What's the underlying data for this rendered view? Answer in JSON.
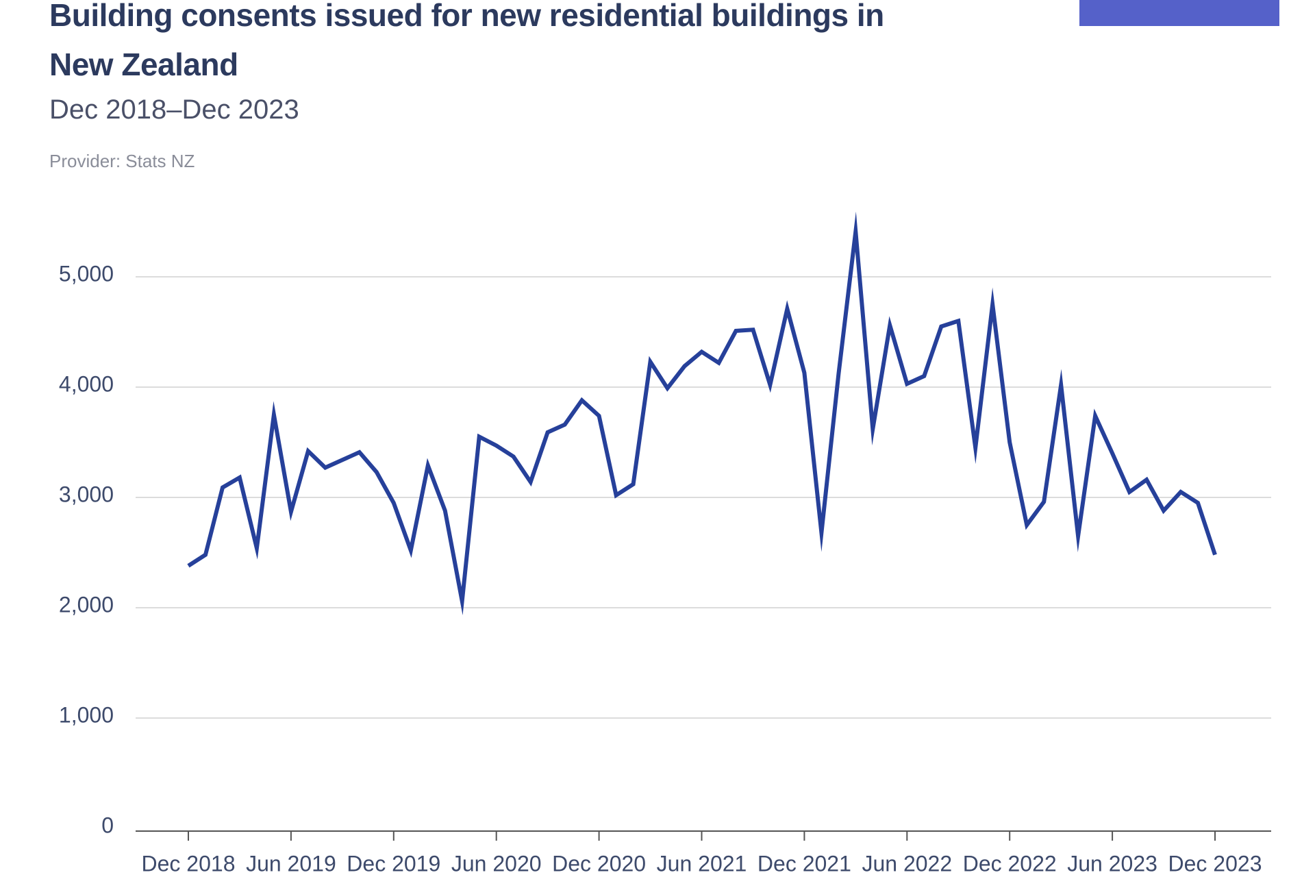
{
  "chart_data": {
    "type": "line",
    "title": "Building consents issued for new residential buildings in New Zealand",
    "subtitle": "Dec 2018–Dec 2023",
    "source": "Provider: Stats NZ",
    "categories": [
      "Dec 2018",
      null,
      null,
      null,
      null,
      null,
      "Jun 2019",
      null,
      null,
      null,
      null,
      null,
      "Dec 2019",
      null,
      null,
      null,
      null,
      null,
      "Jun 2020",
      null,
      null,
      null,
      null,
      null,
      "Dec 2020",
      null,
      null,
      null,
      null,
      null,
      "Jun 2021",
      null,
      null,
      null,
      null,
      null,
      "Dec 2021",
      null,
      null,
      null,
      null,
      null,
      "Jun 2022",
      null,
      null,
      null,
      null,
      null,
      "Dec 2022",
      null,
      null,
      null,
      null,
      null,
      "Jun 2023",
      null,
      null,
      null,
      null,
      null,
      "Dec 2023"
    ],
    "series": [
      {
        "color": "#26409a",
        "values": [
          2380,
          2480,
          3090,
          3180,
          2540,
          3750,
          2870,
          3420,
          3270,
          3340,
          3410,
          3230,
          2950,
          2520,
          3290,
          2880,
          2060,
          3550,
          3470,
          3370,
          3140,
          3590,
          3660,
          3880,
          3740,
          3020,
          3120,
          4230,
          3990,
          4190,
          4320,
          4220,
          4510,
          4520,
          4020,
          4710,
          4130,
          2680,
          4120,
          5410,
          3620,
          4560,
          4030,
          4100,
          4550,
          4600,
          3450,
          4750,
          3500,
          2750,
          2960,
          4020,
          2650,
          3740,
          3400,
          3050,
          3160,
          2880,
          3050,
          2950,
          2480
        ]
      }
    ],
    "ylim": [
      0,
      5500
    ],
    "yticks": [
      0,
      {
        "value": 1000,
        "label": "1,000"
      },
      {
        "value": 2000,
        "label": "2,000"
      },
      {
        "value": 3000,
        "label": "3,000"
      },
      {
        "value": 4000,
        "label": "4,000"
      },
      {
        "value": 5000,
        "label": "5,000"
      }
    ],
    "grid": true
  }
}
